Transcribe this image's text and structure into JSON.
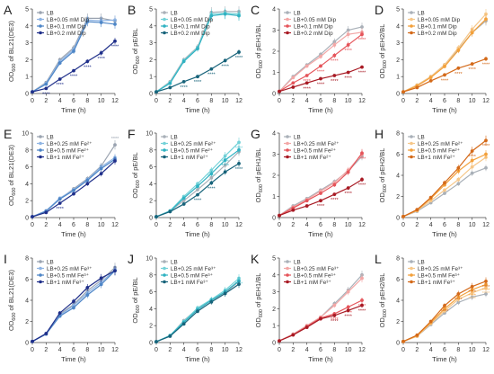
{
  "chart_data": [
    {
      "panel": "A",
      "type": "line",
      "ylabel": "OD",
      "ylabel_sub": "600",
      "ylabel_rest": " of BL21(DE3)",
      "xlabel": "Time (h)",
      "x": [
        0,
        2,
        4,
        6,
        8,
        10,
        12
      ],
      "ylim": [
        0,
        5
      ],
      "yticks": [
        0,
        1,
        2,
        3,
        4,
        5
      ],
      "xticks": [
        0,
        2,
        4,
        6,
        8,
        10,
        12
      ],
      "series": [
        {
          "name": "LB",
          "color": "#9aa3b0",
          "values": [
            0.1,
            0.65,
            2.0,
            2.7,
            4.45,
            4.45,
            4.3
          ],
          "sig": []
        },
        {
          "name": "LB+0.05 mM Dip",
          "color": "#8fb4e3",
          "values": [
            0.1,
            0.6,
            1.9,
            2.6,
            4.35,
            4.3,
            4.35
          ],
          "sig": []
        },
        {
          "name": "LB+0.1 mM Dip",
          "color": "#4e86c7",
          "values": [
            0.1,
            0.55,
            1.8,
            2.5,
            4.25,
            4.2,
            4.1
          ],
          "sig": []
        },
        {
          "name": "LB+0.2 mM Dip",
          "color": "#1f2f8a",
          "values": [
            0.1,
            0.3,
            0.85,
            1.35,
            1.9,
            2.4,
            3.1
          ],
          "sig": [
            1,
            2,
            3,
            4,
            5,
            6
          ]
        }
      ]
    },
    {
      "panel": "B",
      "type": "line",
      "ylabel": "OD",
      "ylabel_sub": "600",
      "ylabel_rest": " of pE/BL",
      "xlabel": "Time (h)",
      "x": [
        0,
        2,
        4,
        6,
        8,
        10,
        12
      ],
      "ylim": [
        0,
        5
      ],
      "yticks": [
        0,
        1,
        2,
        3,
        4,
        5
      ],
      "xticks": [
        0,
        2,
        4,
        6,
        8,
        10,
        12
      ],
      "series": [
        {
          "name": "LB",
          "color": "#a9b0b8",
          "values": [
            0.1,
            0.7,
            2.0,
            2.75,
            4.8,
            4.85,
            4.85
          ],
          "sig": []
        },
        {
          "name": "LB+0.05 mM Dip",
          "color": "#74d2d8",
          "values": [
            0.1,
            0.65,
            1.95,
            2.7,
            4.7,
            4.75,
            4.7
          ],
          "sig": []
        },
        {
          "name": "LB+0.1 mM Dip",
          "color": "#2fb2c2",
          "values": [
            0.1,
            0.6,
            1.9,
            2.65,
            4.6,
            4.7,
            4.6
          ],
          "sig": []
        },
        {
          "name": "LB+0.2 mM Dip",
          "color": "#17637a",
          "values": [
            0.1,
            0.35,
            0.7,
            1.0,
            1.45,
            1.95,
            2.45
          ],
          "sig": [
            2,
            3,
            4,
            5,
            6
          ]
        }
      ]
    },
    {
      "panel": "C",
      "type": "line",
      "ylabel": "OD",
      "ylabel_sub": "600",
      "ylabel_rest": " of pEH1/BL",
      "xlabel": "Time (h)",
      "x": [
        0,
        2,
        4,
        6,
        8,
        10,
        12
      ],
      "ylim": [
        0,
        4
      ],
      "yticks": [
        0,
        1,
        2,
        3,
        4
      ],
      "xticks": [
        0,
        2,
        4,
        6,
        8,
        10,
        12
      ],
      "series": [
        {
          "name": "LB",
          "color": "#a9b0b8",
          "values": [
            0.1,
            0.8,
            1.35,
            1.85,
            2.45,
            3.0,
            3.15
          ],
          "sig": []
        },
        {
          "name": "LB+0.05 mM Dip",
          "color": "#f3a7a6",
          "values": [
            0.1,
            0.75,
            1.3,
            1.75,
            2.3,
            2.8,
            2.9
          ],
          "sig": []
        },
        {
          "name": "LB+0.1 mM Dip",
          "color": "#e5545a",
          "values": [
            0.1,
            0.5,
            0.85,
            1.3,
            1.8,
            2.3,
            2.8
          ],
          "sig": [
            2,
            3,
            4,
            5,
            6
          ]
        },
        {
          "name": "LB+0.2 mM Dip",
          "color": "#a81a24",
          "values": [
            0.1,
            0.3,
            0.5,
            0.7,
            0.85,
            1.0,
            1.25
          ],
          "sig": [
            2,
            3,
            4,
            5,
            6
          ]
        }
      ]
    },
    {
      "panel": "D",
      "type": "line",
      "ylabel": "OD",
      "ylabel_sub": "600",
      "ylabel_rest": " of pEH2/BL",
      "xlabel": "Time (h)",
      "x": [
        0,
        2,
        4,
        6,
        8,
        10,
        12
      ],
      "ylim": [
        0,
        5
      ],
      "yticks": [
        0,
        1,
        2,
        3,
        4,
        5
      ],
      "xticks": [
        0,
        2,
        4,
        6,
        8,
        10,
        12
      ],
      "series": [
        {
          "name": "LB",
          "color": "#a9b0b8",
          "values": [
            0.1,
            0.5,
            1.0,
            1.7,
            2.6,
            3.6,
            4.3
          ],
          "sig": []
        },
        {
          "name": "LB+0.05 mM Dip",
          "color": "#f6c789",
          "values": [
            0.1,
            0.5,
            1.0,
            1.7,
            2.7,
            3.8,
            4.7
          ],
          "sig": []
        },
        {
          "name": "LB+0.1 mM Dip",
          "color": "#f3a03a",
          "values": [
            0.1,
            0.45,
            0.95,
            1.6,
            2.55,
            3.6,
            4.4
          ],
          "sig": []
        },
        {
          "name": "LB+0.2 mM Dip",
          "color": "#d46a1a",
          "values": [
            0.1,
            0.35,
            0.75,
            1.1,
            1.5,
            1.75,
            2.05
          ],
          "sig": [
            3,
            4,
            5,
            6
          ]
        }
      ]
    },
    {
      "panel": "E",
      "type": "line",
      "ylabel": "OD",
      "ylabel_sub": "600",
      "ylabel_rest": " of BL21(DE3)",
      "xlabel": "Time (h)",
      "x": [
        0,
        2,
        4,
        6,
        8,
        10,
        12
      ],
      "ylim": [
        0,
        10
      ],
      "yticks": [
        0,
        2,
        4,
        6,
        8,
        10
      ],
      "xticks": [
        0,
        2,
        4,
        6,
        8,
        10,
        12
      ],
      "series": [
        {
          "name": "LB",
          "color": "#9aa3b0",
          "values": [
            0.1,
            0.8,
            2.2,
            3.4,
            4.6,
            6.1,
            8.6
          ],
          "sig": [
            6
          ]
        },
        {
          "name": "LB+0.25 mM Fe²⁺",
          "color": "#8fb4e3",
          "values": [
            0.1,
            0.8,
            2.3,
            3.3,
            4.5,
            6.0,
            7.1
          ],
          "sig": []
        },
        {
          "name": "LB+0.5 mM Fe²⁺",
          "color": "#4e86c7",
          "values": [
            0.1,
            0.75,
            2.2,
            3.2,
            4.4,
            5.8,
            6.9
          ],
          "sig": []
        },
        {
          "name": "LB+1 mM Fe²⁺",
          "color": "#1f2f8a",
          "values": [
            0.1,
            0.6,
            1.7,
            2.8,
            4.0,
            5.2,
            6.7
          ],
          "sig": [
            2
          ]
        }
      ]
    },
    {
      "panel": "F",
      "type": "line",
      "ylabel": "OD",
      "ylabel_sub": "600",
      "ylabel_rest": " of pE/BL",
      "xlabel": "Time (h)",
      "x": [
        0,
        2,
        4,
        6,
        8,
        10,
        12
      ],
      "ylim": [
        0,
        10
      ],
      "yticks": [
        0,
        2,
        4,
        6,
        8,
        10
      ],
      "xticks": [
        0,
        2,
        4,
        6,
        8,
        10,
        12
      ],
      "series": [
        {
          "name": "LB",
          "color": "#a9b0b8",
          "values": [
            0.1,
            0.8,
            2.0,
            3.3,
            4.7,
            6.2,
            7.8
          ],
          "sig": []
        },
        {
          "name": "LB+0.25 mM Fe²⁺",
          "color": "#74d2d8",
          "values": [
            0.1,
            0.8,
            2.5,
            4.0,
            5.6,
            7.3,
            8.9
          ],
          "sig": [
            4,
            5,
            6
          ]
        },
        {
          "name": "LB+0.5 mM Fe²⁺",
          "color": "#2fb2c2",
          "values": [
            0.1,
            0.75,
            2.3,
            3.7,
            5.2,
            6.8,
            8.0
          ],
          "sig": [
            5
          ]
        },
        {
          "name": "LB+1 mM Fe²⁺",
          "color": "#17637a",
          "values": [
            0.1,
            0.7,
            1.6,
            2.7,
            4.1,
            5.4,
            6.4
          ],
          "sig": [
            3,
            4,
            6
          ]
        }
      ]
    },
    {
      "panel": "G",
      "type": "line",
      "ylabel": "OD",
      "ylabel_sub": "600",
      "ylabel_rest": " of pEH1/BL",
      "xlabel": "Time (h)",
      "x": [
        0,
        2,
        4,
        6,
        8,
        10,
        12
      ],
      "ylim": [
        0,
        4
      ],
      "yticks": [
        0,
        1,
        2,
        3,
        4
      ],
      "xticks": [
        0,
        2,
        4,
        6,
        8,
        10,
        12
      ],
      "series": [
        {
          "name": "LB",
          "color": "#a9b0b8",
          "values": [
            0.1,
            0.55,
            0.9,
            1.3,
            1.7,
            2.2,
            2.9
          ],
          "sig": []
        },
        {
          "name": "LB+0.25 mM Fe²⁺",
          "color": "#f3a7a6",
          "values": [
            0.1,
            0.5,
            0.85,
            1.25,
            1.65,
            2.25,
            3.0
          ],
          "sig": []
        },
        {
          "name": "LB+0.5 mM Fe²⁺",
          "color": "#e5545a",
          "values": [
            0.1,
            0.45,
            0.8,
            1.15,
            1.55,
            2.15,
            3.05
          ],
          "sig": [
            6
          ]
        },
        {
          "name": "LB+1 mM Fe²⁺",
          "color": "#a81a24",
          "values": [
            0.1,
            0.35,
            0.55,
            0.8,
            1.1,
            1.4,
            1.8
          ],
          "sig": [
            3,
            4,
            5,
            6
          ]
        }
      ]
    },
    {
      "panel": "H",
      "type": "line",
      "ylabel": "OD",
      "ylabel_sub": "600",
      "ylabel_rest": " of pEH2/BL",
      "xlabel": "Time (h)",
      "x": [
        0,
        2,
        4,
        6,
        8,
        10,
        12
      ],
      "ylim": [
        0,
        8
      ],
      "yticks": [
        0,
        2,
        4,
        6,
        8
      ],
      "xticks": [
        0,
        2,
        4,
        6,
        8,
        10,
        12
      ],
      "series": [
        {
          "name": "LB",
          "color": "#a9b0b8",
          "values": [
            0.1,
            0.6,
            1.4,
            2.3,
            3.2,
            4.2,
            4.7
          ],
          "sig": []
        },
        {
          "name": "LB+0.25 mM Fe²⁺",
          "color": "#f6c789",
          "values": [
            0.1,
            0.65,
            1.6,
            2.6,
            3.6,
            4.8,
            5.7
          ],
          "sig": []
        },
        {
          "name": "LB+0.5 mM Fe²⁺",
          "color": "#f3a03a",
          "values": [
            0.1,
            0.7,
            1.8,
            3.1,
            4.4,
            5.4,
            6.0
          ],
          "sig": []
        },
        {
          "name": "LB+1 mM Fe²⁺",
          "color": "#d46a1a",
          "values": [
            0.1,
            0.75,
            1.9,
            3.3,
            4.7,
            6.3,
            7.3
          ],
          "sig": [
            5,
            6
          ]
        }
      ]
    },
    {
      "panel": "I",
      "type": "line",
      "ylabel": "OD",
      "ylabel_sub": "600",
      "ylabel_rest": " of BL21(DE3)",
      "xlabel": "Time (h)",
      "x": [
        0,
        2,
        4,
        6,
        8,
        10,
        12
      ],
      "ylim": [
        0,
        8
      ],
      "yticks": [
        0,
        2,
        4,
        6,
        8
      ],
      "xticks": [
        0,
        2,
        4,
        6,
        8,
        10,
        12
      ],
      "series": [
        {
          "name": "LB",
          "color": "#9aa3b0",
          "values": [
            0.1,
            0.8,
            2.7,
            3.6,
            4.9,
            5.9,
            7.1
          ],
          "sig": []
        },
        {
          "name": "LB+0.25 mM Fe³⁺",
          "color": "#8fb4e3",
          "values": [
            0.1,
            0.85,
            2.6,
            3.5,
            4.7,
            5.7,
            6.9
          ],
          "sig": []
        },
        {
          "name": "LB+0.5 mM Fe³⁺",
          "color": "#4e86c7",
          "values": [
            0.1,
            0.8,
            2.5,
            3.3,
            4.5,
            5.5,
            6.8
          ],
          "sig": []
        },
        {
          "name": "LB+1 mM Fe³⁺",
          "color": "#1f2f8a",
          "values": [
            0.1,
            0.85,
            2.8,
            3.9,
            5.2,
            6.1,
            6.8
          ],
          "sig": []
        }
      ]
    },
    {
      "panel": "J",
      "type": "line",
      "ylabel": "OD",
      "ylabel_sub": "600",
      "ylabel_rest": " of pE/BL",
      "xlabel": "Time (h)",
      "x": [
        0,
        2,
        4,
        6,
        8,
        10,
        12
      ],
      "ylim": [
        0,
        10
      ],
      "yticks": [
        0,
        2,
        4,
        6,
        8,
        10
      ],
      "xticks": [
        0,
        2,
        4,
        6,
        8,
        10,
        12
      ],
      "series": [
        {
          "name": "LB",
          "color": "#a9b0b8",
          "values": [
            0.1,
            0.8,
            2.6,
            4.0,
            5.0,
            5.9,
            7.2
          ],
          "sig": []
        },
        {
          "name": "LB+0.25 mM Fe³⁺",
          "color": "#74d2d8",
          "values": [
            0.1,
            0.85,
            2.5,
            4.1,
            5.1,
            6.2,
            7.6
          ],
          "sig": [
            6
          ]
        },
        {
          "name": "LB+0.5 mM Fe³⁺",
          "color": "#2fb2c2",
          "values": [
            0.1,
            0.8,
            2.4,
            3.9,
            5.0,
            6.0,
            7.3
          ],
          "sig": []
        },
        {
          "name": "LB+1 mM Fe³⁺",
          "color": "#17637a",
          "values": [
            0.1,
            0.75,
            2.2,
            3.7,
            4.8,
            5.8,
            6.9
          ],
          "sig": []
        }
      ]
    },
    {
      "panel": "K",
      "type": "line",
      "ylabel": "OD",
      "ylabel_sub": "600",
      "ylabel_rest": " of pEH1/BL",
      "xlabel": "Time (h)",
      "x": [
        0,
        2,
        4,
        6,
        8,
        10,
        12
      ],
      "ylim": [
        0,
        5
      ],
      "yticks": [
        0,
        1,
        2,
        3,
        4,
        5
      ],
      "xticks": [
        0,
        2,
        4,
        6,
        8,
        10,
        12
      ],
      "series": [
        {
          "name": "LB",
          "color": "#a9b0b8",
          "values": [
            0.1,
            0.5,
            1.0,
            1.5,
            2.3,
            3.1,
            4.0
          ],
          "sig": []
        },
        {
          "name": "LB+0.25 mM Fe³⁺",
          "color": "#f3a7a6",
          "values": [
            0.1,
            0.5,
            1.0,
            1.5,
            2.2,
            3.0,
            3.8
          ],
          "sig": []
        },
        {
          "name": "LB+0.5 mM Fe³⁺",
          "color": "#e5545a",
          "values": [
            0.1,
            0.45,
            0.95,
            1.45,
            1.7,
            2.1,
            2.5
          ],
          "sig": [
            4,
            5,
            6
          ]
        },
        {
          "name": "LB+1 mM Fe³⁺",
          "color": "#a81a24",
          "values": [
            0.1,
            0.45,
            0.9,
            1.4,
            1.6,
            1.9,
            2.2
          ],
          "sig": [
            4,
            5,
            6
          ]
        }
      ]
    },
    {
      "panel": "L",
      "type": "line",
      "ylabel": "OD",
      "ylabel_sub": "600",
      "ylabel_rest": " of pEH2/BL",
      "xlabel": "Time (h)",
      "x": [
        0,
        2,
        4,
        6,
        8,
        10,
        12
      ],
      "ylim": [
        0,
        8
      ],
      "yticks": [
        0,
        2,
        4,
        6,
        8
      ],
      "xticks": [
        0,
        2,
        4,
        6,
        8,
        10,
        12
      ],
      "series": [
        {
          "name": "LB",
          "color": "#a9b0b8",
          "values": [
            0.1,
            0.6,
            1.7,
            2.8,
            3.8,
            4.3,
            4.6
          ],
          "sig": []
        },
        {
          "name": "LB+0.25 mM Fe³⁺",
          "color": "#f6c789",
          "values": [
            0.1,
            0.6,
            1.8,
            3.0,
            4.1,
            4.7,
            5.2
          ],
          "sig": [
            5,
            6
          ]
        },
        {
          "name": "LB+0.5 mM Fe³⁺",
          "color": "#f3a03a",
          "values": [
            0.1,
            0.65,
            1.9,
            3.2,
            4.3,
            5.0,
            5.5
          ],
          "sig": [
            5,
            6
          ]
        },
        {
          "name": "LB+1 mM Fe³⁺",
          "color": "#d46a1a",
          "values": [
            0.1,
            0.7,
            2.0,
            3.5,
            4.6,
            5.3,
            5.8
          ],
          "sig": [
            3,
            4,
            5,
            6
          ]
        }
      ]
    }
  ]
}
